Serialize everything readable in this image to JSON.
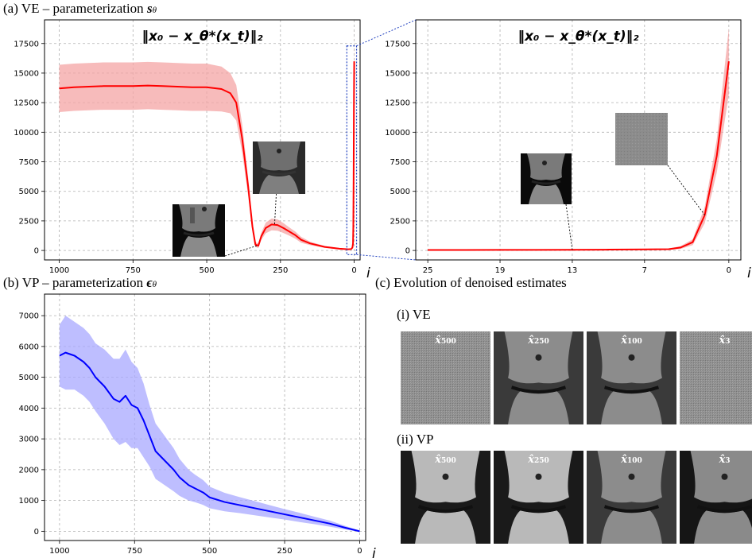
{
  "captions": {
    "a": {
      "prefix": "(a) VE – parameterization",
      "symbol": "s",
      "sub": "θ"
    },
    "b": {
      "prefix": "(b) VP – parameterization",
      "symbol": "ϵ",
      "sub": "θ"
    },
    "c": "(c) Evolution of denoised estimates",
    "c_i": "(i) VE",
    "c_ii": "(ii) VP"
  },
  "plot_title": "‖x₀ − x_θ*(x_t)‖₂",
  "x_axis_symbol": "i",
  "colors": {
    "ve": "#ff0000",
    "ve_band": "#f4a4a4",
    "vp": "#0000ff",
    "vp_band": "#a8a8ff",
    "zoom_box": "#1f3fbf"
  },
  "denoised": {
    "ve": [
      {
        "label": "x̂",
        "sub": "500",
        "style": "noise"
      },
      {
        "label": "x̂",
        "sub": "250",
        "style": "knee"
      },
      {
        "label": "x̂",
        "sub": "100",
        "style": "knee"
      },
      {
        "label": "x̂",
        "sub": "3",
        "style": "noise"
      }
    ],
    "vp": [
      {
        "label": "x̂",
        "sub": "500",
        "style": "knee-smooth"
      },
      {
        "label": "x̂",
        "sub": "250",
        "style": "knee-smooth"
      },
      {
        "label": "x̂",
        "sub": "100",
        "style": "knee"
      },
      {
        "label": "x̂",
        "sub": "3",
        "style": "knee-dark"
      }
    ]
  },
  "chart_data": [
    {
      "id": "a-left",
      "type": "line",
      "title": "‖x₀ − x_θ*(x_t)‖₂",
      "xlabel": "i",
      "ylabel": "",
      "xlim": [
        1050,
        -20
      ],
      "ylim": [
        -800,
        19500
      ],
      "xticks": [
        1000,
        750,
        500,
        250,
        0
      ],
      "yticks": [
        0,
        2500,
        5000,
        7500,
        10000,
        12500,
        15000,
        17500
      ],
      "grid": true,
      "series": [
        {
          "x": [
            1000,
            950,
            900,
            850,
            800,
            750,
            700,
            650,
            600,
            550,
            500,
            450,
            420,
            400,
            380,
            360,
            345,
            335,
            325,
            315,
            300,
            280,
            260,
            240,
            220,
            200,
            180,
            150,
            100,
            50,
            20,
            10,
            6,
            4,
            3,
            2,
            1,
            0
          ],
          "y": [
            13700,
            13800,
            13850,
            13900,
            13900,
            13900,
            13950,
            13900,
            13850,
            13800,
            13800,
            13650,
            13300,
            12500,
            9500,
            5500,
            2000,
            500,
            400,
            1200,
            1900,
            2200,
            2150,
            1900,
            1600,
            1300,
            900,
            600,
            300,
            150,
            100,
            120,
            250,
            600,
            2000,
            6000,
            12000,
            16000
          ],
          "spread": [
            2000,
            2000,
            2000,
            2000,
            2000,
            2000,
            2000,
            2000,
            2000,
            2000,
            2000,
            1900,
            1700,
            1500,
            1200,
            800,
            400,
            200,
            200,
            300,
            450,
            500,
            480,
            420,
            350,
            300,
            250,
            150,
            80,
            50,
            40,
            40,
            80,
            150,
            400,
            1200,
            2000,
            2800
          ]
        }
      ]
    },
    {
      "id": "a-right",
      "type": "line",
      "title": "‖x₀ − x_θ*(x_t)‖₂",
      "xlabel": "i",
      "ylabel": "",
      "xlim": [
        26,
        -1
      ],
      "ylim": [
        -800,
        19500
      ],
      "xticks": [
        25,
        19,
        13,
        7,
        0
      ],
      "yticks": [
        0,
        2500,
        5000,
        7500,
        10000,
        12500,
        15000,
        17500
      ],
      "grid": true,
      "series": [
        {
          "x": [
            25,
            22,
            19,
            16,
            13,
            10,
            7,
            5,
            4,
            3,
            2,
            1,
            0
          ],
          "y": [
            40,
            40,
            45,
            50,
            60,
            70,
            90,
            110,
            250,
            700,
            3000,
            8000,
            16000
          ],
          "spread": [
            30,
            30,
            30,
            30,
            35,
            40,
            50,
            60,
            120,
            250,
            700,
            1400,
            2800
          ]
        }
      ]
    },
    {
      "id": "b",
      "type": "line",
      "title": "",
      "xlabel": "i",
      "ylabel": "",
      "xlim": [
        1050,
        -20
      ],
      "ylim": [
        -300,
        7700
      ],
      "xticks": [
        1000,
        750,
        500,
        250,
        0
      ],
      "yticks": [
        0,
        1000,
        2000,
        3000,
        4000,
        5000,
        6000,
        7000
      ],
      "grid": true,
      "series": [
        {
          "x": [
            1000,
            980,
            950,
            920,
            900,
            880,
            850,
            820,
            800,
            780,
            760,
            740,
            720,
            700,
            680,
            650,
            620,
            600,
            570,
            550,
            520,
            500,
            450,
            400,
            350,
            300,
            250,
            200,
            150,
            100,
            50,
            0
          ],
          "y": [
            5700,
            5800,
            5700,
            5500,
            5300,
            5000,
            4700,
            4300,
            4200,
            4400,
            4100,
            4000,
            3600,
            3100,
            2600,
            2300,
            2000,
            1750,
            1500,
            1400,
            1250,
            1100,
            950,
            850,
            750,
            650,
            550,
            450,
            350,
            250,
            120,
            0
          ],
          "spread": [
            1000,
            1200,
            1100,
            1100,
            1100,
            1100,
            1200,
            1300,
            1400,
            1500,
            1400,
            1300,
            1200,
            1000,
            900,
            800,
            700,
            600,
            500,
            450,
            400,
            350,
            300,
            260,
            230,
            200,
            170,
            150,
            120,
            100,
            60,
            20
          ]
        }
      ]
    }
  ]
}
